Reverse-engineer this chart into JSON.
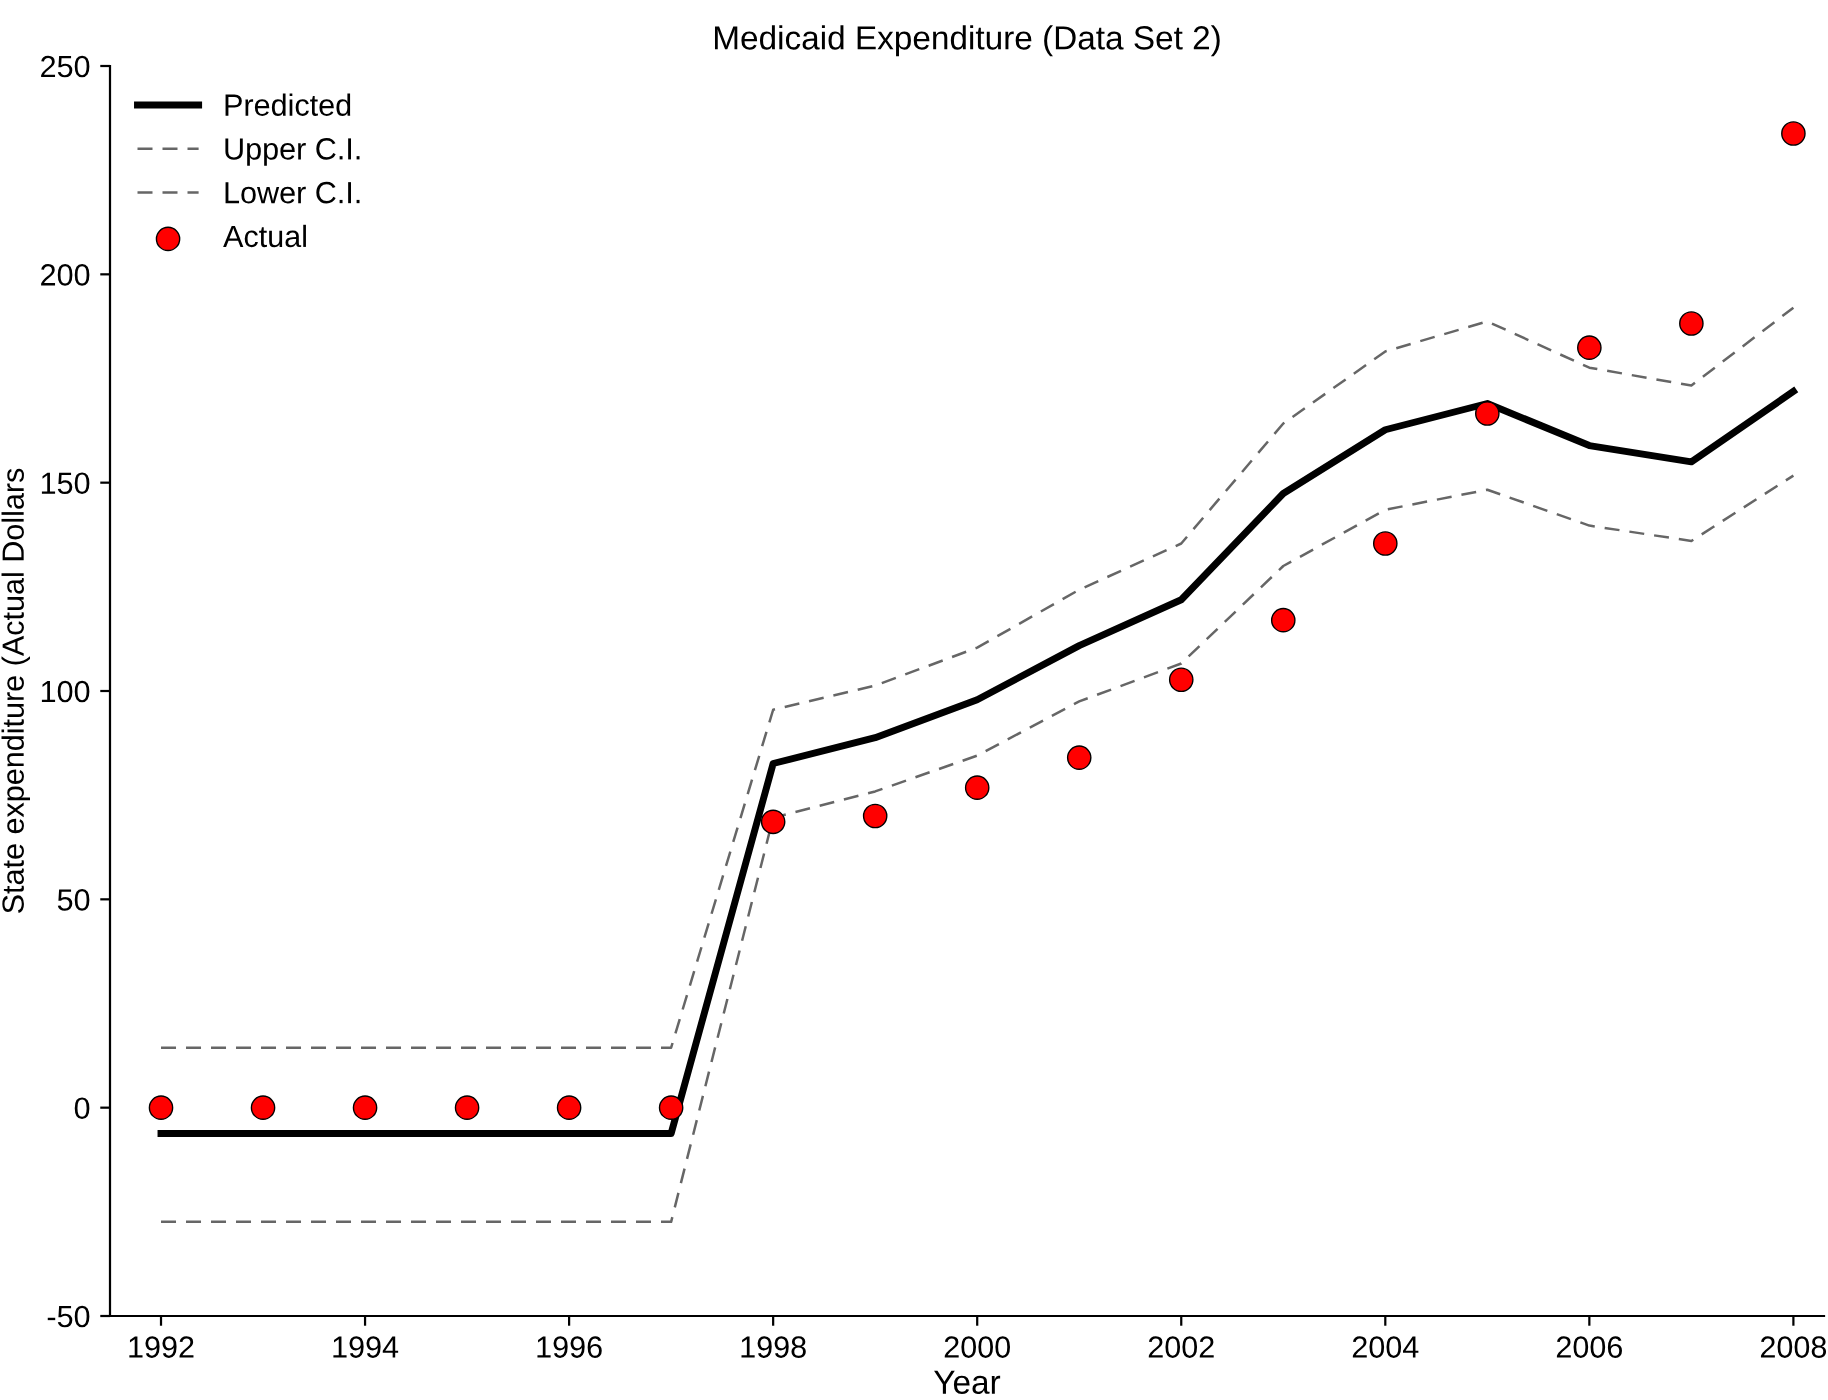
{
  "chart_data": {
    "type": "line",
    "title": "Medicaid Expenditure (Data Set 2)",
    "xlabel": "Year",
    "ylabel": "State expenditure (Actual Dollars",
    "x": [
      1992,
      1993,
      1994,
      1995,
      1996,
      1997,
      1998,
      1999,
      2000,
      2001,
      2002,
      2003,
      2004,
      2005,
      2006,
      2007,
      2008
    ],
    "series": [
      {
        "name": "Predicted",
        "color": "#000000",
        "line_style": "solid",
        "values": [
          -6.2,
          -6.2,
          -6.2,
          -6.2,
          -6.2,
          -6.2,
          82.6,
          88.8,
          97.9,
          110.9,
          121.9,
          147.4,
          162.7,
          169,
          158.9,
          155,
          171.9
        ]
      },
      {
        "name": "Upper C.I.",
        "color": "#666666",
        "line_style": "dashed",
        "values": [
          14.4,
          14.4,
          14.4,
          14.4,
          14.4,
          14.4,
          95.5,
          101.3,
          110.4,
          124.3,
          135.4,
          164.2,
          181.5,
          188.7,
          177.6,
          173.3,
          192
        ]
      },
      {
        "name": "Lower C.I.",
        "color": "#666666",
        "line_style": "dashed",
        "values": [
          -27.4,
          -27.4,
          -27.4,
          -27.4,
          -27.4,
          -27.4,
          69.6,
          75.9,
          84.5,
          97.5,
          106.6,
          130,
          143.5,
          148.3,
          139.7,
          136,
          151.7
        ]
      },
      {
        "name": "Actual",
        "color": "#ff0000",
        "type": "scatter",
        "marker": "circle",
        "values": [
          0,
          0,
          0,
          0,
          0,
          0,
          68.6,
          70,
          76.8,
          84,
          102.7,
          117,
          135.4,
          166.6,
          182.4,
          188.2,
          233.8
        ]
      }
    ],
    "xlim": [
      1991.5,
      2008.3
    ],
    "xticks": [
      1992,
      1994,
      1996,
      1998,
      2000,
      2002,
      2004,
      2006,
      2008
    ],
    "ylim": [
      -50,
      250
    ],
    "yticks": [
      -50,
      0,
      50,
      100,
      150,
      200,
      250
    ],
    "grid": false,
    "legend": "top left"
  }
}
